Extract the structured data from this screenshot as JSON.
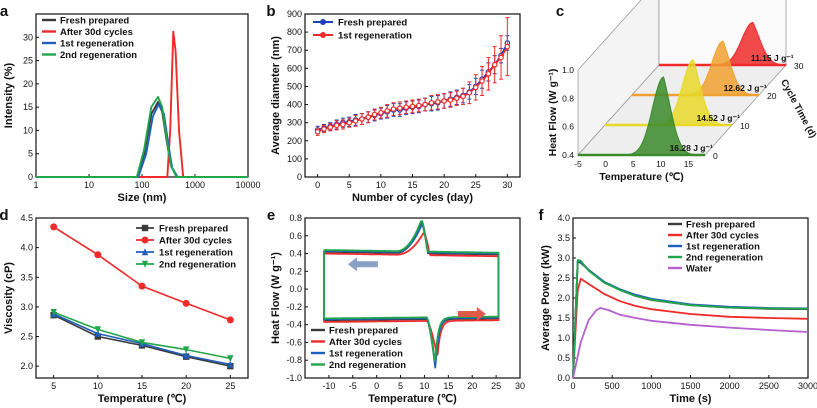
{
  "chart_data": [
    {
      "id": "a",
      "panel_label": "a",
      "type": "line",
      "xscale": "log",
      "xlim": [
        1,
        10000
      ],
      "ylim": [
        0,
        35
      ],
      "xticks": [
        1,
        10,
        100,
        1000,
        10000
      ],
      "xtick_labels": [
        "1",
        "10",
        "100",
        "1000",
        "10000"
      ],
      "yticks": [
        0,
        5,
        10,
        15,
        20,
        25,
        30
      ],
      "ytick_labels": [
        "0",
        "5",
        "10",
        "15",
        "20",
        "25",
        "30"
      ],
      "xlabel": "Size (nm)",
      "ylabel": "Intensity (%)",
      "legend_position": "top-left",
      "series": [
        {
          "name": "Fresh prepared",
          "color": "#3a3a3a",
          "x": [
            1,
            80,
            110,
            150,
            200,
            240,
            290,
            350,
            450,
            10000
          ],
          "y": [
            0,
            0,
            5,
            13.5,
            16.1,
            14,
            8,
            2.5,
            0,
            0
          ]
        },
        {
          "name": "After 30d cycles",
          "color": "#ee2a2a",
          "x": [
            1,
            300,
            340,
            390,
            430,
            500,
            600,
            10000
          ],
          "y": [
            0,
            0,
            10,
            31.2,
            27,
            10,
            0,
            0
          ]
        },
        {
          "name": "1st regeneration",
          "color": "#1f5fbf",
          "x": [
            1,
            85,
            120,
            160,
            210,
            260,
            310,
            370,
            470,
            10000
          ],
          "y": [
            0,
            0,
            5,
            13,
            15.8,
            13.5,
            7.5,
            2,
            0,
            0
          ]
        },
        {
          "name": "2nd regeneration",
          "color": "#22a64a",
          "x": [
            1,
            80,
            110,
            150,
            200,
            240,
            290,
            350,
            450,
            10000
          ],
          "y": [
            0,
            0,
            6,
            15,
            17.2,
            15,
            8.5,
            2.5,
            0,
            0
          ]
        }
      ]
    },
    {
      "id": "b",
      "panel_label": "b",
      "type": "line",
      "xlim": [
        -2,
        32
      ],
      "ylim": [
        0,
        900
      ],
      "xticks": [
        0,
        5,
        10,
        15,
        20,
        25,
        30
      ],
      "xtick_labels": [
        "0",
        "5",
        "10",
        "15",
        "20",
        "25",
        "30"
      ],
      "yticks": [
        0,
        100,
        200,
        300,
        400,
        500,
        600,
        700,
        800,
        900
      ],
      "ytick_labels": [
        "0",
        "100",
        "200",
        "300",
        "400",
        "500",
        "600",
        "700",
        "800",
        "900"
      ],
      "xlabel": "Number of cycles (day)",
      "ylabel": "Average diameter (nm)",
      "legend_position": "top-left",
      "series": [
        {
          "name": "Fresh prepared",
          "color": "#1f3fbf",
          "x": [
            0,
            1,
            2,
            3,
            4,
            5,
            6,
            7,
            8,
            9,
            10,
            11,
            12,
            13,
            14,
            15,
            16,
            17,
            18,
            19,
            20,
            21,
            22,
            23,
            24,
            25,
            26,
            27,
            28,
            29,
            30
          ],
          "y": [
            260,
            270,
            280,
            290,
            300,
            305,
            315,
            320,
            330,
            340,
            350,
            360,
            370,
            370,
            380,
            385,
            390,
            400,
            405,
            410,
            420,
            430,
            440,
            450,
            470,
            500,
            540,
            580,
            620,
            670,
            740
          ],
          "err": [
            20,
            20,
            20,
            25,
            25,
            25,
            30,
            30,
            30,
            30,
            30,
            35,
            35,
            35,
            35,
            35,
            35,
            35,
            40,
            40,
            40,
            40,
            40,
            40,
            40,
            45,
            50,
            50,
            50,
            40,
            40
          ]
        },
        {
          "name": "1st regeneration",
          "color": "#ee2a2a",
          "x": [
            0,
            1,
            2,
            3,
            4,
            5,
            6,
            7,
            8,
            9,
            10,
            11,
            12,
            13,
            14,
            15,
            16,
            17,
            18,
            19,
            20,
            21,
            22,
            23,
            24,
            25,
            26,
            27,
            28,
            29,
            30
          ],
          "y": [
            250,
            265,
            275,
            285,
            290,
            300,
            310,
            320,
            330,
            345,
            355,
            365,
            375,
            380,
            385,
            390,
            395,
            400,
            410,
            415,
            420,
            425,
            435,
            445,
            465,
            495,
            530,
            570,
            620,
            660,
            720
          ],
          "err": [
            20,
            20,
            20,
            25,
            25,
            25,
            30,
            30,
            30,
            30,
            30,
            35,
            35,
            35,
            35,
            35,
            35,
            35,
            40,
            40,
            40,
            40,
            40,
            45,
            60,
            70,
            80,
            90,
            100,
            120,
            160
          ]
        }
      ]
    },
    {
      "id": "c",
      "panel_label": "c",
      "type": "area",
      "xlim": [
        -5,
        18
      ],
      "ylim": [
        0.4,
        1.0
      ],
      "xticks": [
        -5,
        0,
        5,
        10,
        15
      ],
      "xtick_labels": [
        "-5",
        "0",
        "5",
        "10",
        "15"
      ],
      "yticks": [
        0.4,
        0.6,
        0.8,
        1.0
      ],
      "ytick_labels": [
        "0.4",
        "0.6",
        "0.8",
        "1.0"
      ],
      "ztick_labels": [
        "0",
        "10",
        "20",
        "30"
      ],
      "xlabel": "Temperature (℃)",
      "ylabel": "Heat Flow (W g⁻¹)",
      "zlabel": "Cycle Time (d)",
      "series": [
        {
          "cycle": 0,
          "color": "#3a8a2a",
          "label": "16.28 J g⁻¹",
          "peak_x": 10.5,
          "peak_y": 0.95
        },
        {
          "cycle": 10,
          "color": "#e8d828",
          "label": "14.52 J g⁻¹",
          "peak_x": 11.0,
          "peak_y": 0.86
        },
        {
          "cycle": 20,
          "color": "#f0a030",
          "label": "12.62 J g⁻¹",
          "peak_x": 11.5,
          "peak_y": 0.78
        },
        {
          "cycle": 30,
          "color": "#ee2a2a",
          "label": "11.15 J g⁻¹",
          "peak_x": 12.0,
          "peak_y": 0.7
        }
      ]
    },
    {
      "id": "d",
      "panel_label": "d",
      "type": "line",
      "xlim": [
        3,
        27
      ],
      "ylim": [
        1.8,
        4.5
      ],
      "xticks": [
        5,
        10,
        15,
        20,
        25
      ],
      "xtick_labels": [
        "5",
        "10",
        "15",
        "20",
        "25"
      ],
      "yticks": [
        2.0,
        2.5,
        3.0,
        3.5,
        4.0,
        4.5
      ],
      "ytick_labels": [
        "2.0",
        "2.5",
        "3.0",
        "3.5",
        "4.0",
        "4.5"
      ],
      "xlabel": "Temperature (℃)",
      "ylabel": "Viscosity (cP)",
      "legend_position": "top-right",
      "series": [
        {
          "name": "Fresh prepared",
          "color": "#3a3a3a",
          "marker": "square",
          "x": [
            5,
            10,
            15,
            20,
            25
          ],
          "y": [
            2.86,
            2.5,
            2.35,
            2.16,
            2.0
          ]
        },
        {
          "name": "After 30d cycles",
          "color": "#ee2a2a",
          "marker": "circle",
          "x": [
            5,
            10,
            15,
            20,
            25
          ],
          "y": [
            4.35,
            3.88,
            3.35,
            3.06,
            2.78
          ]
        },
        {
          "name": "1st regeneration",
          "color": "#1f5fbf",
          "marker": "triangle",
          "x": [
            5,
            10,
            15,
            20,
            25
          ],
          "y": [
            2.88,
            2.55,
            2.38,
            2.18,
            2.03
          ]
        },
        {
          "name": "2nd regeneration",
          "color": "#22a64a",
          "marker": "triangle-down",
          "x": [
            5,
            10,
            15,
            20,
            25
          ],
          "y": [
            2.91,
            2.62,
            2.4,
            2.28,
            2.13
          ]
        }
      ]
    },
    {
      "id": "e",
      "panel_label": "e",
      "type": "line",
      "xlim": [
        -15,
        30
      ],
      "ylim": [
        -1.0,
        0.8
      ],
      "xticks": [
        -10,
        -5,
        0,
        5,
        10,
        15,
        20,
        25,
        30
      ],
      "xtick_labels": [
        "-10",
        "-5",
        "0",
        "5",
        "10",
        "15",
        "20",
        "25",
        "30"
      ],
      "yticks": [
        -1.0,
        -0.8,
        -0.6,
        -0.4,
        -0.2,
        0.0,
        0.2,
        0.4,
        0.6,
        0.8
      ],
      "ytick_labels": [
        "-1.0",
        "-0.8",
        "-0.6",
        "-0.4",
        "-0.2",
        "0.0",
        "0.2",
        "0.4",
        "0.6",
        "0.8"
      ],
      "xlabel": "Temperature (℃)",
      "ylabel": "Heat Flow (W g⁻¹)",
      "legend_position": "bottom-left",
      "series": [
        {
          "name": "Fresh prepared",
          "color": "#3a3a3a",
          "upper_peak": 0.78,
          "lower_peak": -0.88,
          "dx": 0.0,
          "dy": 0.0
        },
        {
          "name": "After 30d cycles",
          "color": "#ee2a2a",
          "upper_peak": 0.66,
          "lower_peak": -0.78,
          "dx": 0.4,
          "dy": -0.02
        },
        {
          "name": "1st regeneration",
          "color": "#1f5fbf",
          "upper_peak": 0.75,
          "lower_peak": -0.92,
          "dx": 0.0,
          "dy": 0.01
        },
        {
          "name": "2nd regeneration",
          "color": "#22a64a",
          "upper_peak": 0.8,
          "lower_peak": -0.86,
          "dx": -0.1,
          "dy": 0.02
        }
      ]
    },
    {
      "id": "f",
      "panel_label": "f",
      "type": "line",
      "xlim": [
        0,
        3000
      ],
      "ylim": [
        0,
        4.0
      ],
      "xticks": [
        0,
        500,
        1000,
        1500,
        2000,
        2500,
        3000
      ],
      "xtick_labels": [
        "0",
        "500",
        "1000",
        "1500",
        "2000",
        "2500",
        "3000"
      ],
      "yticks": [
        0,
        0.5,
        1.0,
        1.5,
        2.0,
        2.5,
        3.0,
        3.5,
        4.0
      ],
      "ytick_labels": [
        "0.0",
        "0.5",
        "1.0",
        "1.5",
        "2.0",
        "2.5",
        "3.0",
        "3.5",
        "4.0"
      ],
      "xlabel": "Time (s)",
      "ylabel": "Average Power (kW)",
      "legend_position": "top-right",
      "series": [
        {
          "name": "Fresh prepared",
          "color": "#3a3a3a",
          "x": [
            0,
            60,
            100,
            200,
            400,
            600,
            800,
            1000,
            1500,
            2000,
            2500,
            3000
          ],
          "y": [
            0,
            2.9,
            2.88,
            2.7,
            2.4,
            2.2,
            2.05,
            1.95,
            1.82,
            1.76,
            1.73,
            1.72
          ]
        },
        {
          "name": "After 30d cycles",
          "color": "#ee2a2a",
          "x": [
            0,
            60,
            100,
            200,
            400,
            600,
            800,
            1000,
            1500,
            2000,
            2500,
            3000
          ],
          "y": [
            0,
            2.2,
            2.48,
            2.35,
            2.1,
            1.92,
            1.8,
            1.72,
            1.6,
            1.53,
            1.5,
            1.48
          ]
        },
        {
          "name": "1st regeneration",
          "color": "#1f5fbf",
          "x": [
            0,
            60,
            100,
            200,
            400,
            600,
            800,
            1000,
            1500,
            2000,
            2500,
            3000
          ],
          "y": [
            0,
            2.92,
            2.9,
            2.7,
            2.4,
            2.22,
            2.08,
            1.98,
            1.84,
            1.78,
            1.75,
            1.74
          ]
        },
        {
          "name": "2nd regeneration",
          "color": "#22a64a",
          "x": [
            0,
            60,
            100,
            200,
            400,
            600,
            800,
            1000,
            1500,
            2000,
            2500,
            3000
          ],
          "y": [
            0,
            2.95,
            2.93,
            2.68,
            2.38,
            2.2,
            2.05,
            1.96,
            1.82,
            1.76,
            1.74,
            1.73
          ]
        },
        {
          "name": "Water",
          "color": "#b55fd0",
          "x": [
            0,
            100,
            200,
            300,
            350,
            450,
            600,
            800,
            1000,
            1500,
            2000,
            2500,
            3000
          ],
          "y": [
            0,
            0.9,
            1.45,
            1.7,
            1.75,
            1.7,
            1.58,
            1.5,
            1.43,
            1.33,
            1.26,
            1.2,
            1.15
          ]
        }
      ]
    }
  ]
}
